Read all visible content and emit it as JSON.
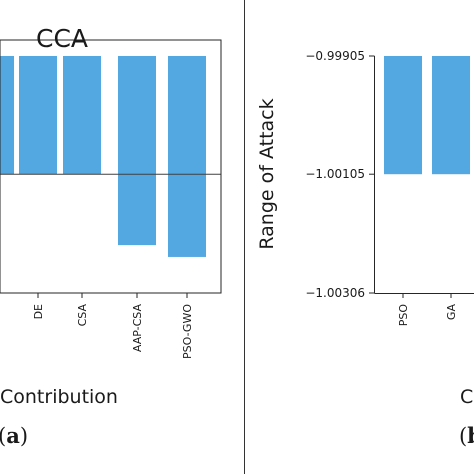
{
  "chart_data": [
    {
      "type": "bar",
      "panel_label_prefix": "(",
      "panel_label_letter": "a",
      "panel_label_suffix": ")",
      "title": "CCA",
      "xlabel": "Contribution",
      "ylabel": "",
      "grid": false,
      "legend": "none",
      "bar_color": "#53a8e2",
      "categories": [
        "",
        "DE",
        "CSA",
        "AAP-CSA",
        "PSO-GWO"
      ],
      "values": [
        -1.00105,
        -1.00105,
        -1.00105,
        -1.00225,
        -1.00245
      ],
      "ylim": [
        -1.00306,
        -0.99905
      ],
      "yticks": [],
      "reference_line": -1.00105
    },
    {
      "type": "bar",
      "panel_label_prefix": "(",
      "panel_label_letter": "b",
      "panel_label_suffix": ")",
      "title": "",
      "xlabel": "C",
      "ylabel": "Range of Attack",
      "grid": false,
      "legend": "none",
      "bar_color": "#53a8e2",
      "categories": [
        "PSO",
        "GA",
        ""
      ],
      "values": [
        -1.00105,
        -1.00105,
        -1.00105
      ],
      "ylim": [
        -1.00306,
        -0.99905
      ],
      "yticks": [
        {
          "value": -0.99905,
          "label": "0.99905"
        },
        {
          "value": -1.00105,
          "label": "1.00105"
        },
        {
          "value": -1.00306,
          "label": "1.00306"
        }
      ],
      "tick_prefix": "−"
    }
  ]
}
